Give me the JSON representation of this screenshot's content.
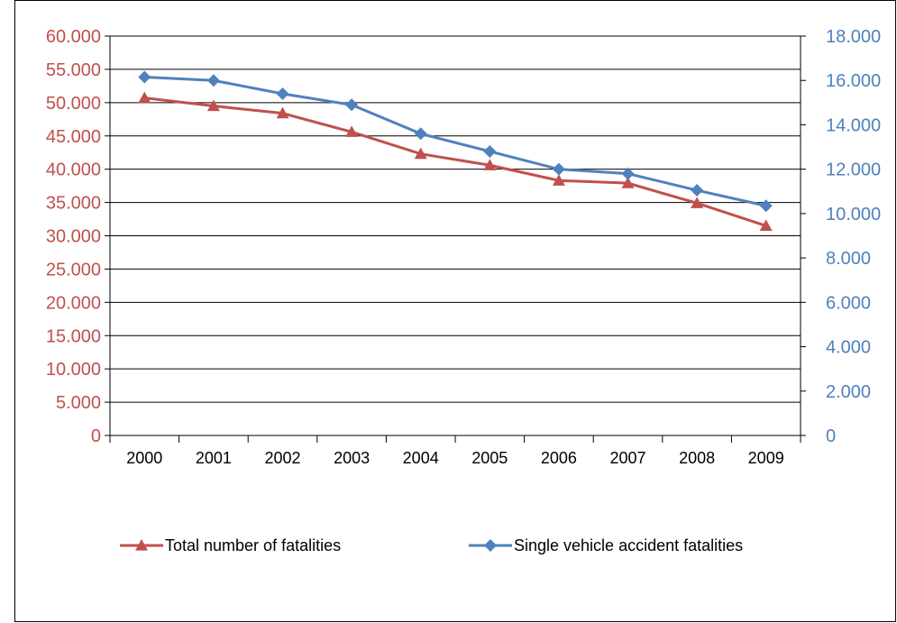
{
  "chart_data": {
    "type": "line",
    "categories": [
      "2000",
      "2001",
      "2002",
      "2003",
      "2004",
      "2005",
      "2006",
      "2007",
      "2008",
      "2009"
    ],
    "series": [
      {
        "name": "Total number of fatalities",
        "axis": "left",
        "color": "#c0504d",
        "marker": "triangle",
        "values": [
          50700,
          49500,
          48400,
          45600,
          42300,
          40600,
          38300,
          37900,
          34900,
          31500
        ]
      },
      {
        "name": "Single vehicle accident fatalities",
        "axis": "right",
        "color": "#4f81bd",
        "marker": "diamond",
        "values": [
          16150,
          16000,
          15400,
          14900,
          13600,
          12800,
          12000,
          11800,
          11050,
          10350
        ]
      }
    ],
    "left_axis": {
      "ylim": [
        0,
        60000
      ],
      "ticks": [
        "0",
        "5.000",
        "10.000",
        "15.000",
        "20.000",
        "25.000",
        "30.000",
        "35.000",
        "40.000",
        "45.000",
        "50.000",
        "55.000",
        "60.000"
      ],
      "color": "#c0504d"
    },
    "right_axis": {
      "ylim": [
        0,
        18000
      ],
      "ticks": [
        "0",
        "2.000",
        "4.000",
        "6.000",
        "8.000",
        "10.000",
        "12.000",
        "14.000",
        "16.000",
        "18.000"
      ],
      "color": "#4f81bd"
    },
    "grid": true,
    "legend_position": "bottom"
  }
}
